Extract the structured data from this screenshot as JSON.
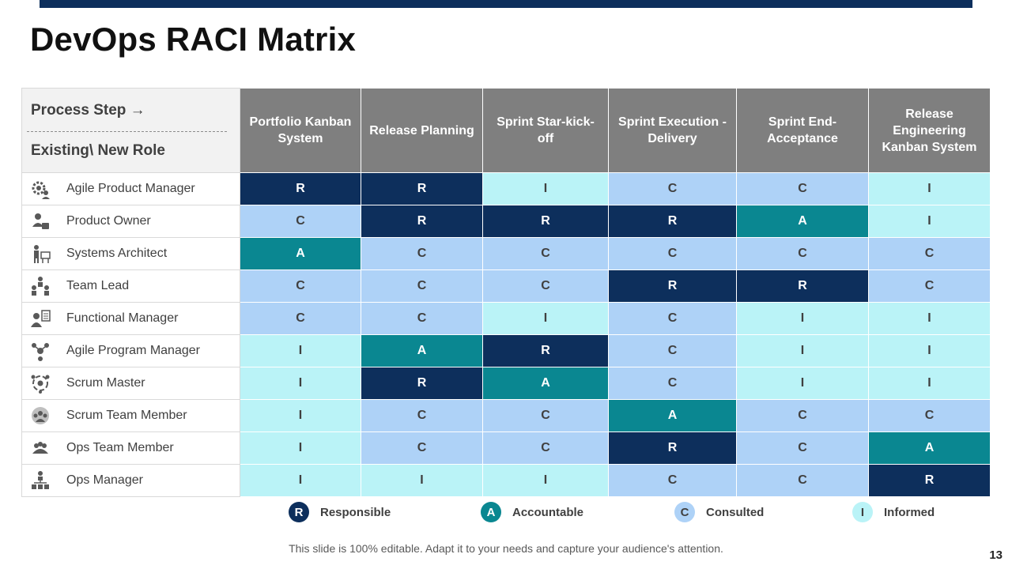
{
  "title": "DevOps RACI Matrix",
  "header": {
    "process_step": "Process Step →",
    "role_label": "Existing\\ New Role",
    "columns": [
      "Portfolio Kanban  System",
      "Release Planning",
      "Sprint  Star-kick-off",
      "Sprint Execution -Delivery",
      "Sprint  End-Acceptance",
      "Release Engineering Kanban  System"
    ]
  },
  "rows": [
    {
      "role": "Agile Product Manager",
      "icon": "gear-person-icon",
      "values": [
        "R",
        "R",
        "I",
        "C",
        "C",
        "I"
      ]
    },
    {
      "role": "Product Owner",
      "icon": "person-briefcase-icon",
      "values": [
        "C",
        "R",
        "R",
        "R",
        "A",
        "I"
      ]
    },
    {
      "role": "Systems Architect",
      "icon": "architect-desk-icon",
      "values": [
        "A",
        "C",
        "C",
        "C",
        "C",
        "C"
      ]
    },
    {
      "role": "Team Lead",
      "icon": "team-lead-icon",
      "values": [
        "C",
        "C",
        "C",
        "R",
        "R",
        "C"
      ]
    },
    {
      "role": "Functional Manager",
      "icon": "manager-document-icon",
      "values": [
        "C",
        "C",
        "I",
        "C",
        "I",
        "I"
      ]
    },
    {
      "role": "Agile Program Manager",
      "icon": "person-network-icon",
      "values": [
        "I",
        "A",
        "R",
        "C",
        "I",
        "I"
      ]
    },
    {
      "role": "Scrum Master",
      "icon": "scrum-cycle-icon",
      "values": [
        "I",
        "R",
        "A",
        "C",
        "I",
        "I"
      ]
    },
    {
      "role": "Scrum Team Member",
      "icon": "team-circle-icon",
      "values": [
        "I",
        "C",
        "C",
        "A",
        "C",
        "C"
      ]
    },
    {
      "role": "Ops Team Member",
      "icon": "group-people-icon",
      "values": [
        "I",
        "C",
        "C",
        "R",
        "C",
        "A"
      ]
    },
    {
      "role": "Ops Manager",
      "icon": "org-hierarchy-icon",
      "values": [
        "I",
        "I",
        "I",
        "C",
        "C",
        "R"
      ]
    }
  ],
  "legend": [
    {
      "letter": "R",
      "label": "Responsible"
    },
    {
      "letter": "A",
      "label": "Accountable"
    },
    {
      "letter": "C",
      "label": "Consulted"
    },
    {
      "letter": "I",
      "label": "Informed"
    }
  ],
  "colors": {
    "R": "#0d2f5c",
    "A": "#0a8791",
    "C": "#aed2f7",
    "I": "#baf3f7",
    "header": "#7f7f7f",
    "top_bar": "#0d2f5c"
  },
  "footer": "This slide is 100% editable. Adapt it to your needs and capture your audience's attention.",
  "page_number": "13"
}
